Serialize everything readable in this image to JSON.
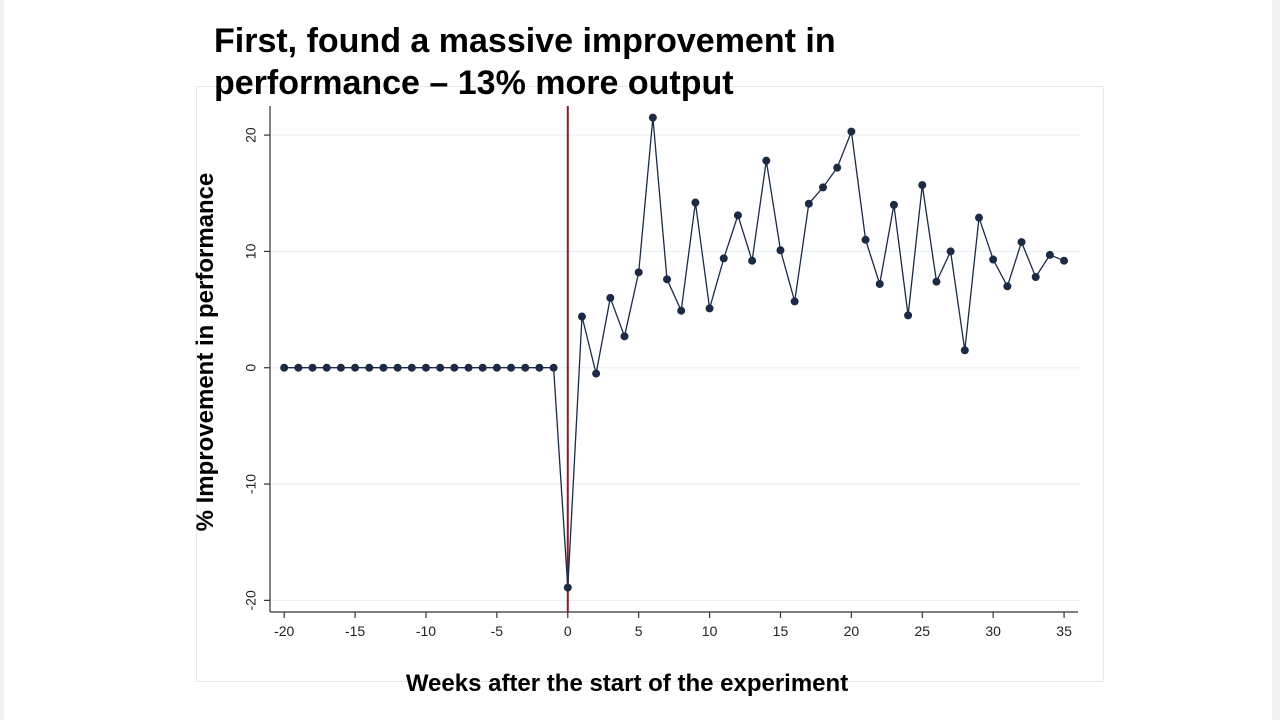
{
  "slide": {
    "title_line1": "First, found a massive improvement in",
    "title_line2": "performance – 13% more output"
  },
  "chart_data": {
    "type": "line",
    "title": "",
    "xlabel": "Weeks after the start of the experiment",
    "ylabel": "% Improvement in performance",
    "xlim": [
      -21,
      35.7
    ],
    "ylim": [
      -21,
      22.5
    ],
    "xticks": [
      -20,
      -15,
      -10,
      -5,
      0,
      5,
      10,
      15,
      20,
      25,
      30,
      35
    ],
    "yticks": [
      -20,
      -10,
      0,
      10,
      20
    ],
    "grid": true,
    "reference_line": {
      "x": 0,
      "color": "#8b1a2e"
    },
    "series": [
      {
        "name": "",
        "color": "#1b2a45",
        "x": [
          -20,
          -19,
          -18,
          -17,
          -16,
          -15,
          -14,
          -13,
          -12,
          -11,
          -10,
          -9,
          -8,
          -7,
          -6,
          -5,
          -4,
          -3,
          -2,
          -1,
          0,
          1,
          2,
          3,
          4,
          5,
          6,
          7,
          8,
          9,
          10,
          11,
          12,
          13,
          14,
          15,
          16,
          17,
          18,
          19,
          20,
          21,
          22,
          23,
          24,
          25,
          26,
          27,
          28,
          29,
          30,
          31,
          32,
          33,
          34,
          35
        ],
        "y": [
          0,
          0,
          0,
          0,
          0,
          0,
          0,
          0,
          0,
          0,
          0,
          0,
          0,
          0,
          0,
          0,
          0,
          0,
          0,
          0,
          -18.9,
          4.4,
          -0.5,
          6.0,
          2.7,
          8.2,
          21.5,
          7.6,
          4.9,
          14.2,
          5.1,
          9.4,
          13.1,
          9.2,
          17.8,
          10.1,
          5.7,
          14.1,
          15.5,
          17.2,
          20.3,
          11.0,
          7.2,
          14.0,
          4.5,
          15.7,
          7.4,
          10.0,
          1.5,
          12.9,
          9.3,
          7.0,
          10.8,
          7.8,
          9.7,
          9.2
        ]
      }
    ]
  }
}
